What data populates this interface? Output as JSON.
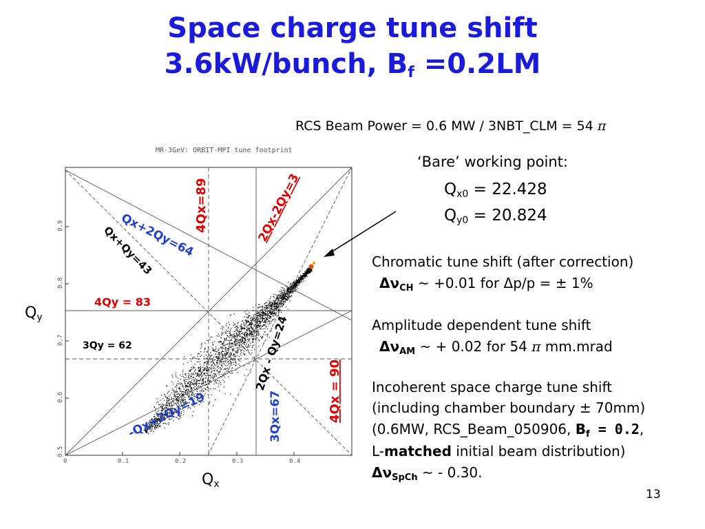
{
  "slide": {
    "title_line1": "Space charge tune shift",
    "title_line2_main": "3.6kW/bunch, B",
    "title_line2_sub": "f",
    "title_line2_end": " =0.2LM",
    "page_number": "13"
  },
  "info": {
    "rcs_line": "RCS Beam Power = 0.6 MW / 3NBT_CLM = 54 ",
    "pi": "π",
    "bare_label": "‘Bare’ working point:",
    "qx0_sym": "Q",
    "qx0_sub": "x0",
    "qx0_val": " = 22.428",
    "qy0_sym": "Q",
    "qy0_sub": "y0",
    "qy0_val": " = 20.824",
    "chrom_title": "Chromatic tune shift (after correction)",
    "chrom_delta": "Δν",
    "chrom_sub": "CH",
    "chrom_val": " ~ +0.01 for Δp/p = ± 1%",
    "amp_title": "Amplitude dependent tune shift",
    "amp_delta": "Δν",
    "amp_sub": "AM",
    "amp_val": " ~ + 0.02 for 54 ",
    "amp_unit": " mm.mrad",
    "inc_line1": "Incoherent space charge tune shift",
    "inc_line2": "(including chamber boundary ± 70mm)",
    "inc_line3a": "(0.6MW, RCS_Beam_050906, ",
    "inc_line3b": "B",
    "inc_line3b_sub": "f",
    "inc_line3c": " = 0.2",
    "inc_line3d": ",",
    "inc_line4a": "L-",
    "inc_line4b": "matched",
    "inc_line4c": " initial beam distribution)",
    "sc_delta": "Δν",
    "sc_sub": "SpCh",
    "sc_val": " ~ - 0.30."
  },
  "chart_data": {
    "type": "scatter",
    "title": "MR-3GeV: ORBIT-MPI tune footprint",
    "xlabel": "Q",
    "xlabel_sub": "x",
    "ylabel": "Q",
    "ylabel_sub": "y",
    "xlim": [
      0,
      0.5
    ],
    "ylim": [
      0.5,
      1.0
    ],
    "x_ticks": [
      "0",
      "0.1",
      "0.2",
      "0.3",
      "0.4"
    ],
    "y_ticks": [
      "0.5",
      "0.6",
      "0.7",
      "0.8",
      "0.9"
    ],
    "bare_working_point": [
      0.428,
      0.824
    ],
    "footprint": {
      "core_x": [
        0.14,
        0.428
      ],
      "core_y": [
        0.54,
        0.824
      ]
    },
    "resonance_lines": [
      {
        "label": "Qx+2Qy=64",
        "color": "#1f3fd0"
      },
      {
        "label": "Qx+Qy=43",
        "color": "#000000"
      },
      {
        "label": "4Qx=89",
        "color": "#e00000"
      },
      {
        "label": "2Qx-2Qy=3",
        "color": "#e00000"
      },
      {
        "label": "4Qy = 83",
        "color": "#e00000"
      },
      {
        "label": "3Qy = 62",
        "color": "#000000"
      },
      {
        "label": "2Qx - Qy=24",
        "color": "#000000"
      },
      {
        "label": "4Qx = 90",
        "color": "#e00000"
      },
      {
        "label": "-Qx+2Qy=19",
        "color": "#1f3fd0"
      },
      {
        "label": "3Qx=67",
        "color": "#1f3fd0"
      }
    ]
  }
}
